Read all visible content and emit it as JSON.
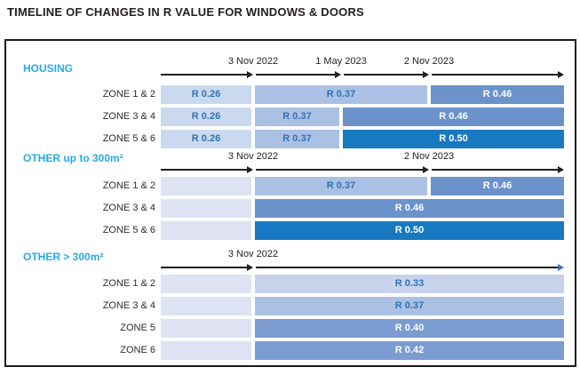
{
  "colors": {
    "axis": "#1f1f1f",
    "arrow_blue": "#4472c4",
    "accent": "#29abe2",
    "title_color": "#231f20",
    "label_color": "#2b2b33",
    "text_blue": "#2d73b7",
    "text_white": "#ffffff",
    "fill_empty": "#dde3f2",
    "fill_026": "#cbd9ef",
    "fill_033": "#c8d3eb",
    "fill_037": "#abc1e4",
    "fill_046": "#6b92cb",
    "fill_040_042": "#7b9cd0",
    "fill_050": "#1878c0"
  },
  "chart_data": {
    "type": "table",
    "title": "TIMELINE OF CHANGES IN R VALUE FOR WINDOWS & DOORS",
    "column_boundaries_labels": [
      "start",
      "3 Nov 2022",
      "1 May 2023",
      "2 Nov 2023",
      "end"
    ],
    "legend": null,
    "sections": [
      {
        "label": "HOUSING",
        "dates": [
          {
            "label": "3 Nov 2022",
            "boundary": 1
          },
          {
            "label": "1 May 2023",
            "boundary": 2
          },
          {
            "label": "2 Nov 2023",
            "boundary": 3
          }
        ],
        "segments": [
          {
            "from": 0,
            "to": 1,
            "arrow": "black"
          },
          {
            "from": 1,
            "to": 2,
            "arrow": "black"
          },
          {
            "from": 2,
            "to": 3,
            "arrow": "black"
          },
          {
            "from": 3,
            "to": 4,
            "arrow": "black"
          }
        ],
        "rows": [
          {
            "label": "ZONE 1 & 2",
            "bars": [
              {
                "text": "R 0.26",
                "from": 0,
                "to": 1,
                "fill": "fill_026",
                "text_style": "blue"
              },
              {
                "text": "R 0.37",
                "from": 1,
                "to": 3,
                "fill": "fill_037",
                "text_style": "blue"
              },
              {
                "text": "R 0.46",
                "from": 3,
                "to": 4,
                "fill": "fill_046",
                "text_style": "white"
              }
            ]
          },
          {
            "label": "ZONE 3 & 4",
            "bars": [
              {
                "text": "R 0.26",
                "from": 0,
                "to": 1,
                "fill": "fill_026",
                "text_style": "blue"
              },
              {
                "text": "R 0.37",
                "from": 1,
                "to": 2,
                "fill": "fill_037",
                "text_style": "blue"
              },
              {
                "text": "R 0.46",
                "from": 2,
                "to": 4,
                "fill": "fill_046",
                "text_style": "white"
              }
            ]
          },
          {
            "label": "ZONE 5 & 6",
            "bars": [
              {
                "text": "R 0.26",
                "from": 0,
                "to": 1,
                "fill": "fill_026",
                "text_style": "blue"
              },
              {
                "text": "R 0.37",
                "from": 1,
                "to": 2,
                "fill": "fill_037",
                "text_style": "blue"
              },
              {
                "text": "R 0.50",
                "from": 2,
                "to": 4,
                "fill": "fill_050",
                "text_style": "white"
              }
            ]
          }
        ]
      },
      {
        "label": "OTHER up to 300m²",
        "dates": [
          {
            "label": "3 Nov 2022",
            "boundary": 1
          },
          {
            "label": "2 Nov 2023",
            "boundary": 3
          }
        ],
        "segments": [
          {
            "from": 0,
            "to": 1,
            "arrow": "black"
          },
          {
            "from": 1,
            "to": 3,
            "arrow": "black"
          },
          {
            "from": 3,
            "to": 4,
            "arrow": "black"
          }
        ],
        "rows": [
          {
            "label": "ZONE 1 & 2",
            "bars": [
              {
                "text": "",
                "from": 0,
                "to": 1,
                "fill": "fill_empty",
                "text_style": "blue"
              },
              {
                "text": "R 0.37",
                "from": 1,
                "to": 3,
                "fill": "fill_037",
                "text_style": "blue"
              },
              {
                "text": "R 0.46",
                "from": 3,
                "to": 4,
                "fill": "fill_046",
                "text_style": "white"
              }
            ]
          },
          {
            "label": "ZONE 3 & 4",
            "bars": [
              {
                "text": "",
                "from": 0,
                "to": 1,
                "fill": "fill_empty",
                "text_style": "blue"
              },
              {
                "text": "R 0.46",
                "from": 1,
                "to": 4,
                "fill": "fill_046",
                "text_style": "white"
              }
            ]
          },
          {
            "label": "ZONE 5 & 6",
            "bars": [
              {
                "text": "",
                "from": 0,
                "to": 1,
                "fill": "fill_empty",
                "text_style": "blue"
              },
              {
                "text": "R 0.50",
                "from": 1,
                "to": 4,
                "fill": "fill_050",
                "text_style": "white"
              }
            ]
          }
        ]
      },
      {
        "label": "OTHER > 300m²",
        "dates": [
          {
            "label": "3 Nov 2022",
            "boundary": 1
          }
        ],
        "segments": [
          {
            "from": 0,
            "to": 1,
            "arrow": "black"
          },
          {
            "from": 1,
            "to": 4,
            "arrow": "blue"
          }
        ],
        "rows": [
          {
            "label": "ZONE 1 & 2",
            "bars": [
              {
                "text": "",
                "from": 0,
                "to": 1,
                "fill": "fill_empty",
                "text_style": "blue"
              },
              {
                "text": "R 0.33",
                "from": 1,
                "to": 4,
                "fill": "fill_033",
                "text_style": "blue"
              }
            ]
          },
          {
            "label": "ZONE 3 & 4",
            "bars": [
              {
                "text": "",
                "from": 0,
                "to": 1,
                "fill": "fill_empty",
                "text_style": "blue"
              },
              {
                "text": "R 0.37",
                "from": 1,
                "to": 4,
                "fill": "fill_037",
                "text_style": "blue"
              }
            ]
          },
          {
            "label": "ZONE 5",
            "bars": [
              {
                "text": "",
                "from": 0,
                "to": 1,
                "fill": "fill_empty",
                "text_style": "blue"
              },
              {
                "text": "R 0.40",
                "from": 1,
                "to": 4,
                "fill": "fill_040_042",
                "text_style": "white"
              }
            ]
          },
          {
            "label": "ZONE 6",
            "bars": [
              {
                "text": "",
                "from": 0,
                "to": 1,
                "fill": "fill_empty",
                "text_style": "blue"
              },
              {
                "text": "R 0.42",
                "from": 1,
                "to": 4,
                "fill": "fill_040_042",
                "text_style": "white"
              }
            ]
          }
        ]
      }
    ]
  }
}
